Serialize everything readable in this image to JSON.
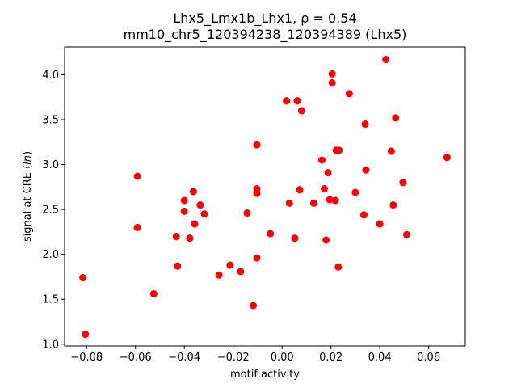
{
  "chart_data": {
    "type": "scatter",
    "title_line1": "Lhx5_Lmx1b_Lhx1, ρ = 0.54",
    "title_line2": "mm10_chr5_120394238_120394389 (Lhx5)",
    "xlabel": "motif activity",
    "ylabel_prefix": "signal at CRE (",
    "ylabel_italic": "ln",
    "ylabel_suffix": ")",
    "xlim": [
      -0.089,
      0.075
    ],
    "ylim": [
      0.98,
      4.31
    ],
    "xticks": [
      -0.08,
      -0.06,
      -0.04,
      -0.02,
      0.0,
      0.02,
      0.04,
      0.06
    ],
    "xtick_labels": [
      "−0.08",
      "−0.06",
      "−0.04",
      "−0.02",
      "0.00",
      "0.02",
      "0.04",
      "0.06"
    ],
    "yticks": [
      1.0,
      1.5,
      2.0,
      2.5,
      3.0,
      3.5,
      4.0
    ],
    "ytick_labels": [
      "1.0",
      "1.5",
      "2.0",
      "2.5",
      "3.0",
      "3.5",
      "4.0"
    ],
    "grid": false,
    "marker_color": "#ff0000",
    "points": [
      {
        "x": -0.0815,
        "y": 1.74
      },
      {
        "x": -0.0805,
        "y": 1.11
      },
      {
        "x": -0.0592,
        "y": 2.87
      },
      {
        "x": -0.0592,
        "y": 2.3
      },
      {
        "x": -0.0525,
        "y": 1.56
      },
      {
        "x": -0.0433,
        "y": 2.2
      },
      {
        "x": -0.0428,
        "y": 1.87
      },
      {
        "x": -0.04,
        "y": 2.6
      },
      {
        "x": -0.04,
        "y": 2.48
      },
      {
        "x": -0.0378,
        "y": 2.18
      },
      {
        "x": -0.0363,
        "y": 2.7
      },
      {
        "x": -0.0358,
        "y": 2.34
      },
      {
        "x": -0.0335,
        "y": 2.55
      },
      {
        "x": -0.0318,
        "y": 2.45
      },
      {
        "x": -0.0258,
        "y": 1.77
      },
      {
        "x": -0.0213,
        "y": 1.88
      },
      {
        "x": -0.017,
        "y": 1.81
      },
      {
        "x": -0.0143,
        "y": 2.46
      },
      {
        "x": -0.0118,
        "y": 1.43
      },
      {
        "x": -0.0103,
        "y": 3.22
      },
      {
        "x": -0.0103,
        "y": 2.73
      },
      {
        "x": -0.0103,
        "y": 2.68
      },
      {
        "x": -0.0103,
        "y": 1.96
      },
      {
        "x": -0.0048,
        "y": 2.23
      },
      {
        "x": 0.0018,
        "y": 3.71
      },
      {
        "x": 0.003,
        "y": 2.57
      },
      {
        "x": 0.0052,
        "y": 2.18
      },
      {
        "x": 0.0062,
        "y": 3.71
      },
      {
        "x": 0.0072,
        "y": 2.72
      },
      {
        "x": 0.008,
        "y": 3.6
      },
      {
        "x": 0.013,
        "y": 2.57
      },
      {
        "x": 0.0163,
        "y": 3.05
      },
      {
        "x": 0.0173,
        "y": 2.73
      },
      {
        "x": 0.018,
        "y": 2.16
      },
      {
        "x": 0.0188,
        "y": 2.91
      },
      {
        "x": 0.0195,
        "y": 2.61
      },
      {
        "x": 0.0205,
        "y": 4.01
      },
      {
        "x": 0.0205,
        "y": 3.91
      },
      {
        "x": 0.0218,
        "y": 2.6
      },
      {
        "x": 0.0222,
        "y": 3.16
      },
      {
        "x": 0.023,
        "y": 1.86
      },
      {
        "x": 0.0233,
        "y": 3.16
      },
      {
        "x": 0.0275,
        "y": 3.79
      },
      {
        "x": 0.03,
        "y": 2.69
      },
      {
        "x": 0.0335,
        "y": 2.44
      },
      {
        "x": 0.034,
        "y": 3.45
      },
      {
        "x": 0.0343,
        "y": 2.94
      },
      {
        "x": 0.04,
        "y": 2.34
      },
      {
        "x": 0.0425,
        "y": 4.17
      },
      {
        "x": 0.0447,
        "y": 3.15
      },
      {
        "x": 0.0455,
        "y": 2.55
      },
      {
        "x": 0.0465,
        "y": 3.52
      },
      {
        "x": 0.0495,
        "y": 2.8
      },
      {
        "x": 0.051,
        "y": 2.22
      },
      {
        "x": 0.0675,
        "y": 3.08
      }
    ]
  }
}
